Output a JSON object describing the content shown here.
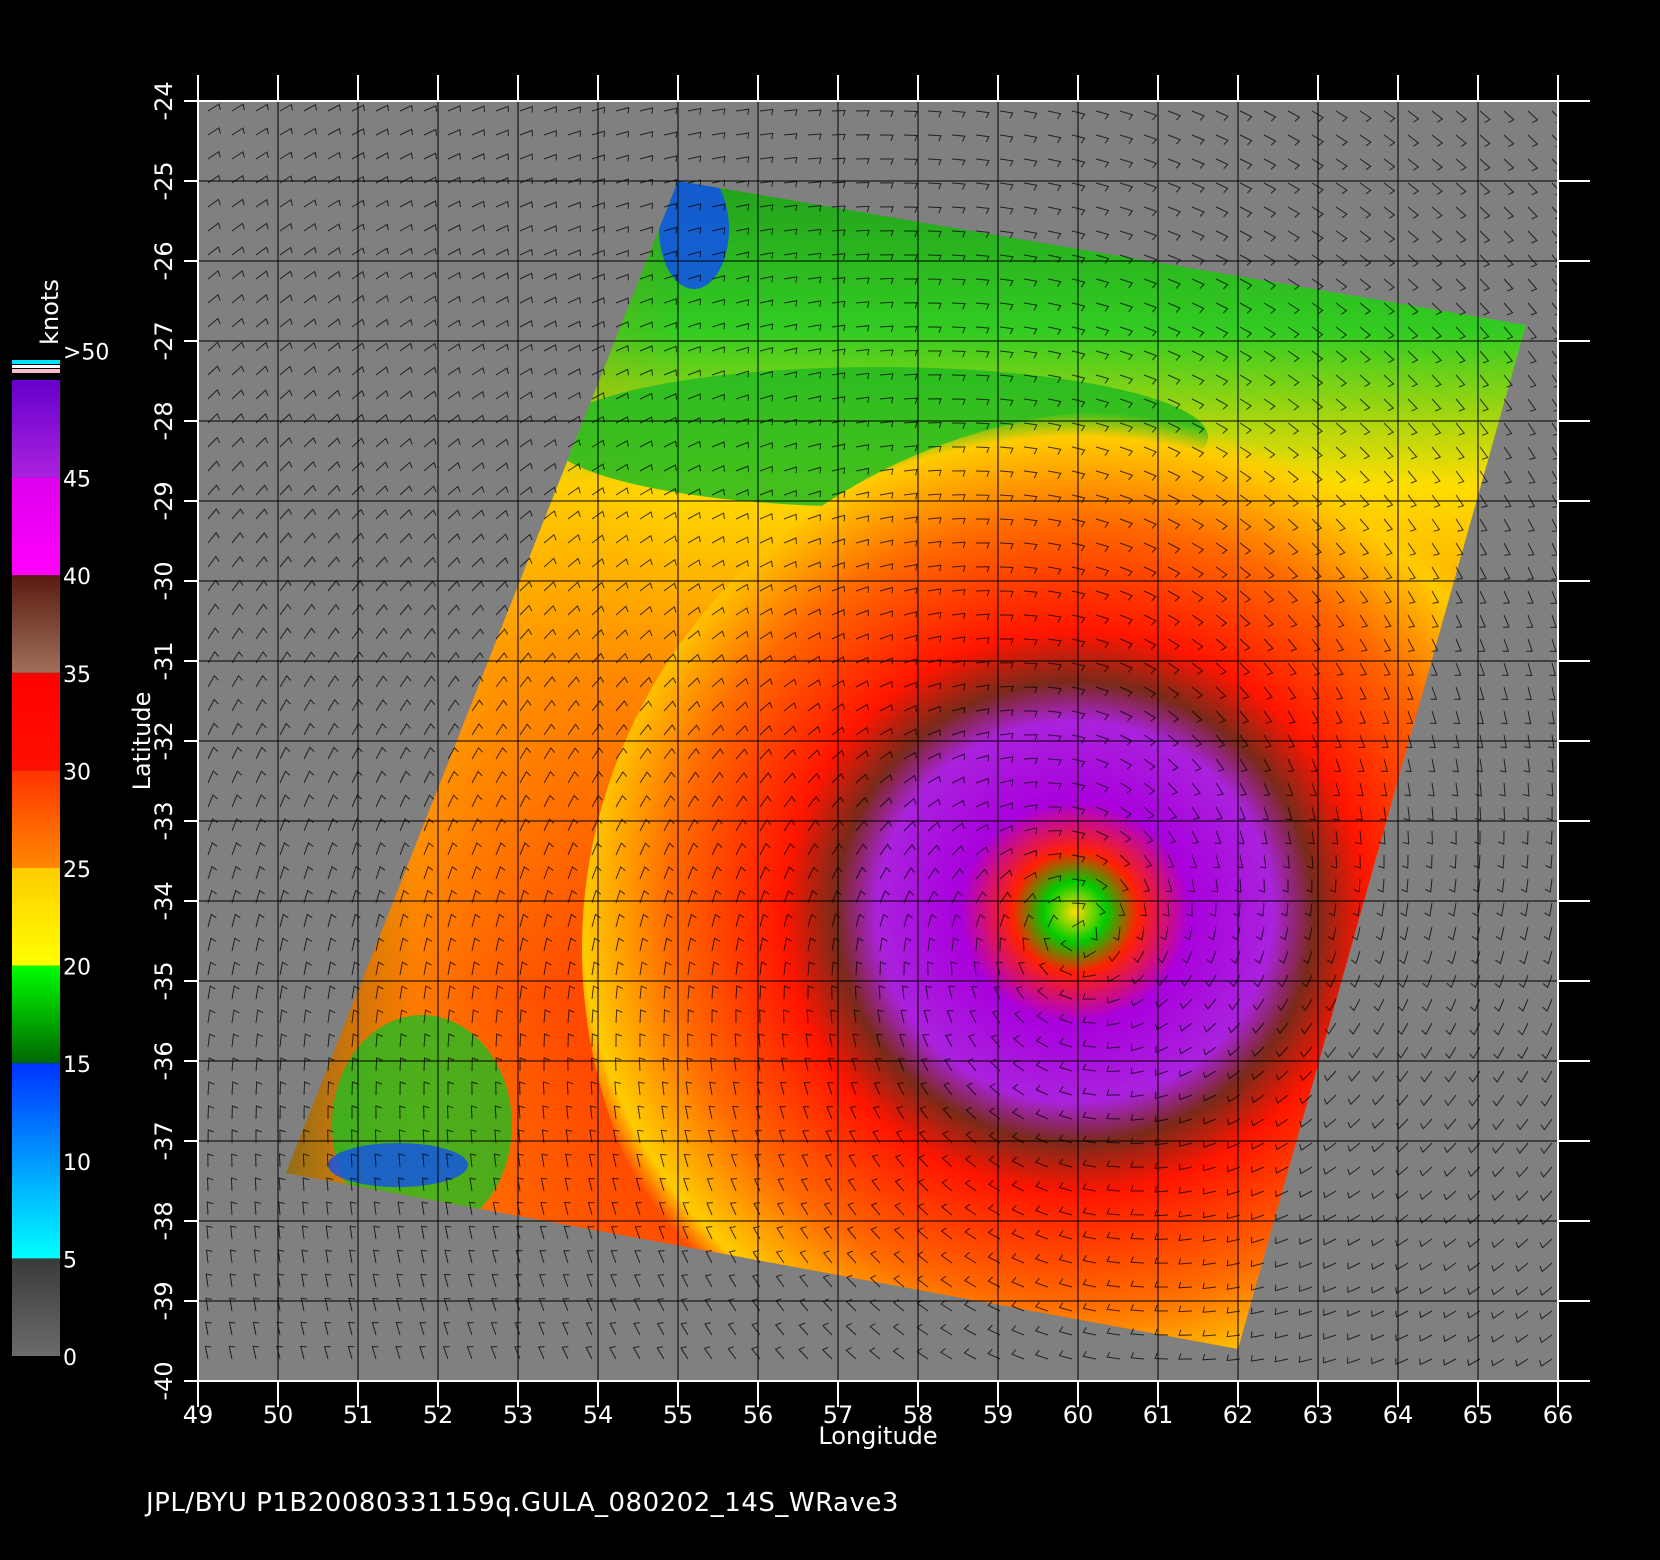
{
  "footer": "JPL/BYU  P1B20080331159q.GULA_080202_14S_WRave3",
  "axes": {
    "xlabel": "Longitude",
    "ylabel": "Latitude",
    "xlim": [
      49,
      66
    ],
    "ylim": [
      -40,
      -24
    ],
    "x_ticks": [
      "49",
      "50",
      "51",
      "52",
      "53",
      "54",
      "55",
      "56",
      "57",
      "58",
      "59",
      "60",
      "61",
      "62",
      "63",
      "64",
      "65",
      "66"
    ],
    "y_ticks": [
      "-24",
      "-25",
      "-26",
      "-27",
      "-28",
      "-29",
      "-30",
      "-31",
      "-32",
      "-33",
      "-34",
      "-35",
      "-36",
      "-37",
      "-38",
      "-39",
      "-40"
    ],
    "grid": true
  },
  "colorbar": {
    "title": "knots",
    "labels": [
      ">50",
      "45",
      "40",
      "35",
      "30",
      "25",
      "20",
      "15",
      "10",
      "5",
      "0"
    ],
    "bands": [
      {
        "from": 0,
        "to": 5,
        "colors": [
          "#6b6b6b",
          "#3a3a3a"
        ]
      },
      {
        "from": 5,
        "to": 15,
        "colors": [
          "#00ffff",
          "#0033ff"
        ]
      },
      {
        "from": 15,
        "to": 20,
        "colors": [
          "#006600",
          "#00ff00"
        ]
      },
      {
        "from": 20,
        "to": 25,
        "colors": [
          "#ffff00",
          "#ffcc00"
        ]
      },
      {
        "from": 25,
        "to": 30,
        "colors": [
          "#ff8800",
          "#ff3300"
        ]
      },
      {
        "from": 30,
        "to": 35,
        "colors": [
          "#ff1100",
          "#ff0000"
        ]
      },
      {
        "from": 35,
        "to": 40,
        "colors": [
          "#a0705a",
          "#5a1a10"
        ]
      },
      {
        "from": 40,
        "to": 45,
        "colors": [
          "#ff00ff",
          "#dd00ee"
        ]
      },
      {
        "from": 45,
        "to": 50,
        "colors": [
          "#aa22dd",
          "#6600cc"
        ]
      }
    ]
  },
  "swath_corners_lonlat": [
    [
      55.0,
      -25.0
    ],
    [
      65.6,
      -26.8
    ],
    [
      62.0,
      -39.6
    ],
    [
      50.1,
      -37.4
    ]
  ],
  "storm_center_lonlat": [
    60.0,
    -34.4
  ],
  "colors": {
    "background": "#000000",
    "land_no_data": "#808080",
    "grid": "#000000",
    "frame": "#ffffff",
    "text": "#ffffff"
  }
}
